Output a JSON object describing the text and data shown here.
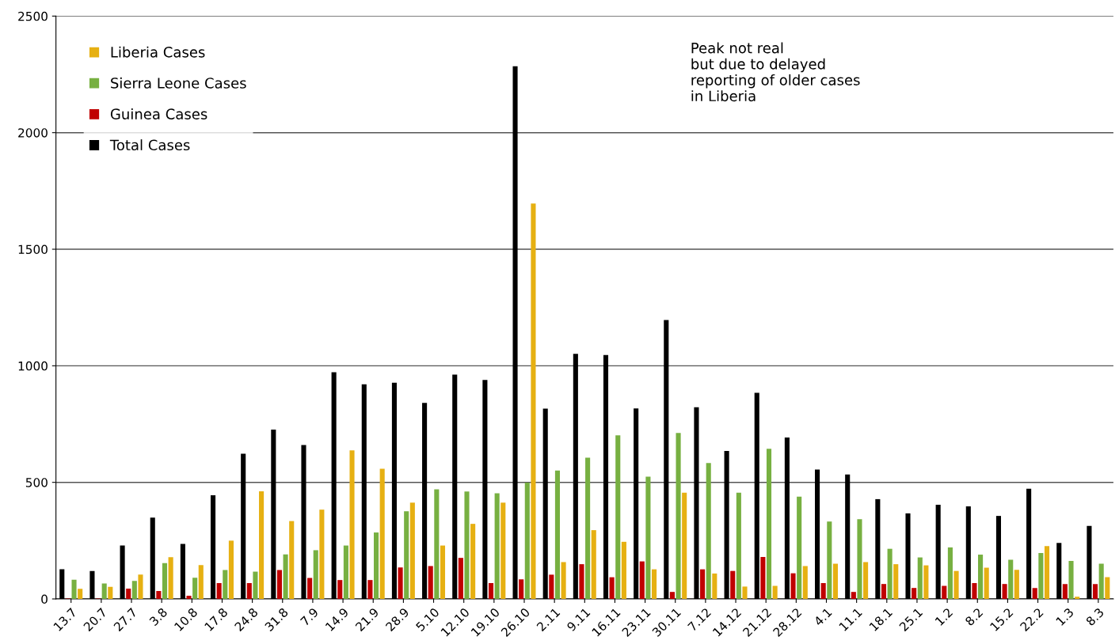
{
  "chart_data": {
    "type": "bar",
    "categories": [
      "13.7",
      "20.7",
      "27.7",
      "3.8",
      "10.8",
      "17.8",
      "24.8",
      "31.8",
      "7.9",
      "14.9",
      "21.9",
      "28.9",
      "5.10",
      "12.10",
      "19.10",
      "26.10",
      "2.11",
      "9.11",
      "16.11",
      "23.11",
      "30.11",
      "7.12",
      "14.12",
      "21.12",
      "28.12",
      "4.1",
      "11.1",
      "18.1",
      "25.1",
      "1.2",
      "8.2",
      "15.2",
      "22.2",
      "1.3",
      "8.3"
    ],
    "series": [
      {
        "name": "Total Cases",
        "color": "#000000",
        "values": [
          127,
          120,
          229,
          349,
          236,
          445,
          623,
          726,
          660,
          972,
          921,
          927,
          841,
          962,
          939,
          2285,
          816,
          1051,
          1046,
          817,
          1196,
          822,
          635,
          884,
          692,
          555,
          534,
          428,
          367,
          404,
          397,
          356,
          473,
          240,
          313
        ]
      },
      {
        "name": "Guinea Cases",
        "color": "#c00000",
        "values": [
          2,
          2,
          44,
          34,
          14,
          68,
          68,
          124,
          90,
          81,
          81,
          135,
          141,
          176,
          68,
          84,
          104,
          149,
          93,
          161,
          30,
          127,
          120,
          180,
          110,
          68,
          30,
          64,
          47,
          56,
          68,
          64,
          47,
          64,
          64
        ]
      },
      {
        "name": "Sierra Leone Cases",
        "color": "#77b041",
        "values": [
          82,
          66,
          77,
          154,
          91,
          124,
          117,
          191,
          209,
          229,
          285,
          376,
          470,
          461,
          453,
          499,
          551,
          606,
          702,
          524,
          712,
          583,
          456,
          644,
          439,
          332,
          342,
          215,
          178,
          221,
          190,
          168,
          197,
          163,
          151
        ]
      },
      {
        "name": "Liberia Cases",
        "color": "#e6b012",
        "values": [
          43,
          52,
          104,
          179,
          145,
          250,
          462,
          334,
          383,
          637,
          558,
          413,
          229,
          322,
          413,
          1696,
          158,
          295,
          245,
          127,
          456,
          109,
          53,
          56,
          141,
          151,
          158,
          149,
          144,
          120,
          134,
          125,
          227,
          9,
          93
        ]
      }
    ],
    "ylim": [
      0,
      2500
    ],
    "yticks": [
      0,
      500,
      1000,
      1500,
      2000,
      2500
    ],
    "grid": "y",
    "legend": "top left",
    "annotations": [
      "Peak not real\nbut due to delayed\nreporting of older cases\nin Liberia"
    ]
  }
}
